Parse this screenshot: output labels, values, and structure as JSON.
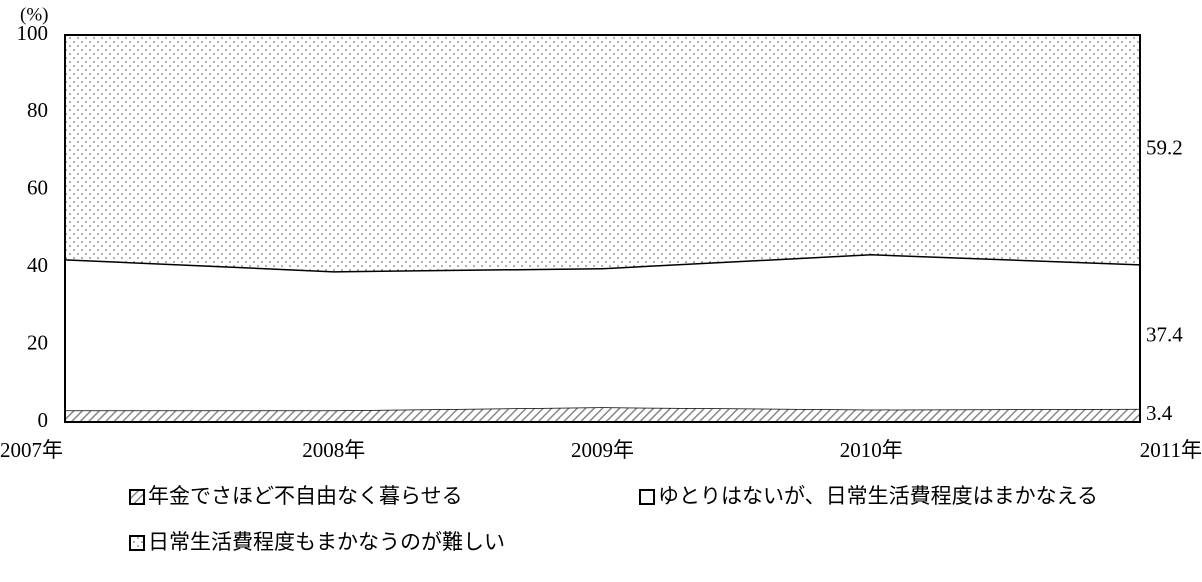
{
  "chart_data": {
    "type": "stacked-area",
    "y_label": "(%)",
    "categories": [
      "2007年",
      "2008年",
      "2009年",
      "2010年",
      "2011年"
    ],
    "series": [
      {
        "name": "年金でさほど不自由なく暮らせる",
        "color": "#888888",
        "pattern": "hatch",
        "values": [
          3.0,
          3.0,
          3.8,
          3.2,
          3.4
        ]
      },
      {
        "name": "ゆとりはないが、日常生活費程度はまかなえる",
        "color": "#ffffff",
        "pattern": "none",
        "values": [
          39.1,
          36.0,
          36.0,
          40.2,
          37.4
        ]
      },
      {
        "name": "日常生活費程度もまかなうのが難しい",
        "color": "#9a9a9a",
        "pattern": "dots",
        "values": [
          57.9,
          61.0,
          60.2,
          56.6,
          59.2
        ]
      }
    ],
    "ylim": [
      0,
      100
    ],
    "yticks": [
      0,
      20,
      40,
      60,
      80,
      100
    ],
    "grid": false
  }
}
